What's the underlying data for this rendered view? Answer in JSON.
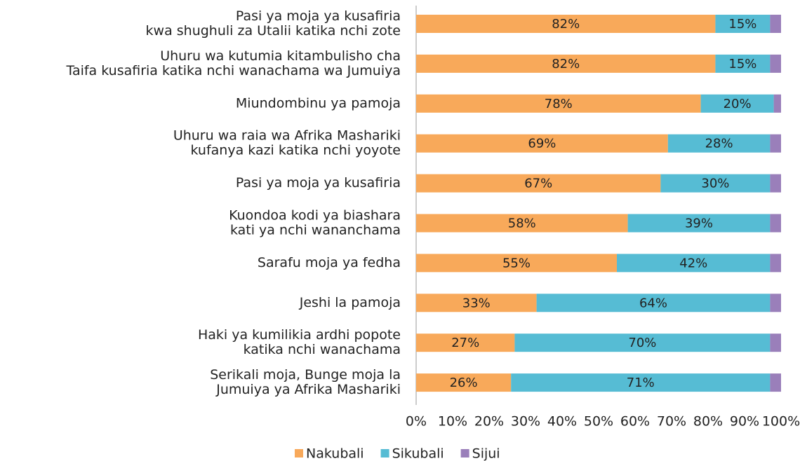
{
  "chart_data": {
    "type": "stacked_bar_horizontal",
    "categories": [
      [
        "Pasi ya moja ya kusafiria",
        "kwa shughuli za Utalii katika nchi zote"
      ],
      [
        "Uhuru wa kutumia kitambulisho cha",
        "Taifa kusafiria katika nchi wanachama wa Jumuiya"
      ],
      [
        "Miundombinu ya pamoja"
      ],
      [
        "Uhuru wa raia wa Afrika Mashariki",
        "kufanya kazi katika nchi yoyote"
      ],
      [
        "Pasi ya moja ya kusafiria"
      ],
      [
        "Kuondoa kodi ya biashara",
        "kati ya nchi wananchama"
      ],
      [
        "Sarafu moja ya fedha"
      ],
      [
        "Jeshi la pamoja"
      ],
      [
        "Haki ya kumilikia ardhi popote",
        "katika nchi wanachama"
      ],
      [
        "Serikali moja, Bunge moja la",
        "Jumuiya ya Afrika Mashariki"
      ]
    ],
    "series": [
      {
        "name": "Nakubali",
        "color": "#f8a95a",
        "values": [
          82,
          82,
          78,
          69,
          67,
          58,
          55,
          33,
          27,
          26
        ],
        "value_labels": [
          "82%",
          "82%",
          "78%",
          "69%",
          "67%",
          "58%",
          "55%",
          "33%",
          "27%",
          "26%"
        ]
      },
      {
        "name": "Sikubali",
        "color": "#56bcd4",
        "values": [
          15,
          15,
          20,
          28,
          30,
          39,
          42,
          64,
          70,
          71
        ],
        "value_labels": [
          "15%",
          "15%",
          "20%",
          "28%",
          "30%",
          "39%",
          "42%",
          "64%",
          "70%",
          "71%"
        ]
      },
      {
        "name": "Sijui",
        "color": "#9a7fba",
        "values": [
          3,
          3,
          2,
          3,
          3,
          3,
          3,
          3,
          3,
          3
        ]
      }
    ],
    "xlim": [
      0,
      100
    ],
    "xticks": [
      {
        "value": 0,
        "label": "0%"
      },
      {
        "value": 10,
        "label": "10%"
      },
      {
        "value": 20,
        "label": "20%"
      },
      {
        "value": 30,
        "label": "30%"
      },
      {
        "value": 40,
        "label": "40%"
      },
      {
        "value": 50,
        "label": "50%"
      },
      {
        "value": 60,
        "label": "60%"
      },
      {
        "value": 70,
        "label": "70%"
      },
      {
        "value": 80,
        "label": "80%"
      },
      {
        "value": 90,
        "label": "90%"
      },
      {
        "value": 100,
        "label": "100%"
      }
    ],
    "legend": "bottom"
  }
}
